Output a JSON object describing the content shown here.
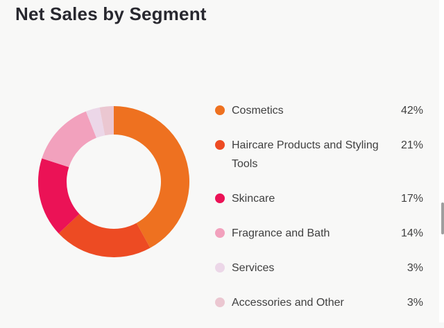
{
  "header": {
    "title": "Net Sales by Segment"
  },
  "chart_data": {
    "type": "pie",
    "subtype": "donut",
    "title": "Net Sales by Segment",
    "categories": [
      "Cosmetics",
      "Haircare Products and Styling Tools",
      "Skincare",
      "Fragrance and Bath",
      "Services",
      "Accessories and Other"
    ],
    "values": [
      42,
      21,
      17,
      14,
      3,
      3
    ],
    "unit": "%",
    "colors": [
      "#ee7120",
      "#ed4b23",
      "#eb1256",
      "#f2a1bd",
      "#ecd7e8",
      "#ebc7d1"
    ],
    "start_angle_deg": 0,
    "direction": "clockwise",
    "inner_radius_ratio": 0.62,
    "legend_position": "right"
  },
  "legend": {
    "items": [
      {
        "label": "Cosmetics",
        "value": "42%",
        "color": "#ee7120"
      },
      {
        "label": "Haircare Products and Styling Tools",
        "value": "21%",
        "color": "#ed4b23"
      },
      {
        "label": "Skincare",
        "value": "17%",
        "color": "#eb1256"
      },
      {
        "label": "Fragrance and Bath",
        "value": "14%",
        "color": "#f2a1bd"
      },
      {
        "label": "Services",
        "value": "3%",
        "color": "#ecd7e8"
      },
      {
        "label": "Accessories and Other",
        "value": "3%",
        "color": "#ebc7d1"
      }
    ]
  }
}
